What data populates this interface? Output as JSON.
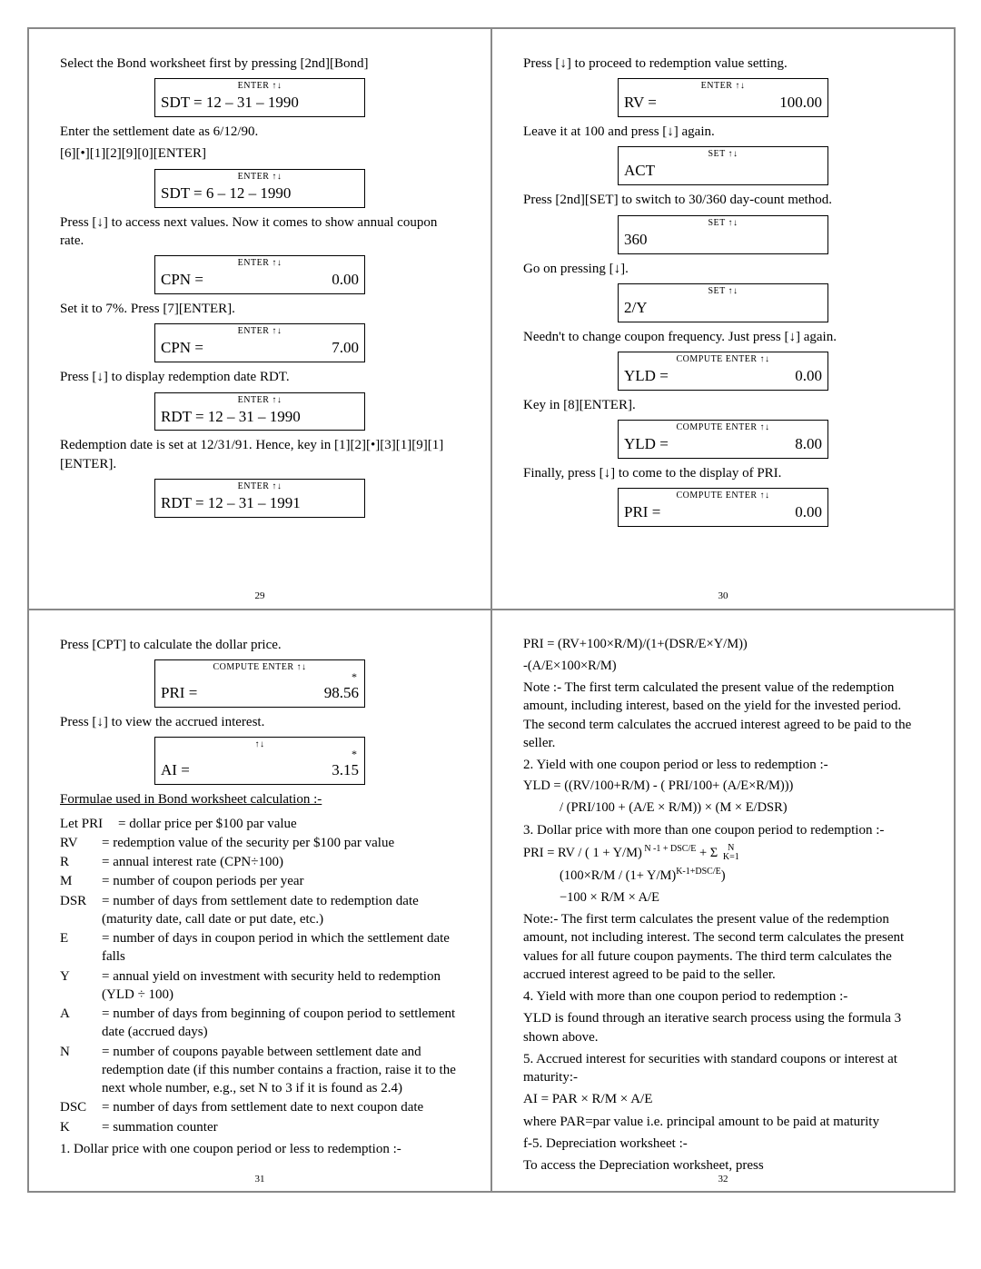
{
  "pages": {
    "p29": {
      "t1": "Select the Bond worksheet first by pressing [2nd][Bond]",
      "s1_hdr": "ENTER  ↑↓",
      "s1_l": "SDT = 12 – 31 – 1990",
      "t2": "Enter the settlement date as 6/12/90.",
      "t3": "[6][•][1][2][9][0][ENTER]",
      "s2_hdr": "ENTER  ↑↓",
      "s2_l": "SDT =   6 – 12 – 1990",
      "t4": "Press [↓] to access next values. Now it comes to show annual coupon rate.",
      "s3_hdr": "ENTER  ↑↓",
      "s3_l": "CPN =",
      "s3_r": "0.00",
      "t5": "Set it to 7%. Press [7][ENTER].",
      "s4_hdr": "ENTER  ↑↓",
      "s4_l": "CPN =",
      "s4_r": "7.00",
      "t6": "Press [↓] to display redemption date RDT.",
      "s5_hdr": "ENTER  ↑↓",
      "s5_l": "RDT = 12 – 31 – 1990",
      "t7": "Redemption date is set at 12/31/91. Hence, key in [1][2][•][3][1][9][1][ENTER].",
      "s6_hdr": "ENTER  ↑↓",
      "s6_l": "RDT =  12 – 31 – 1991",
      "pg": "29"
    },
    "p30": {
      "t1": "Press [↓] to proceed to redemption value setting.",
      "s1_hdr": "ENTER  ↑↓",
      "s1_l": "RV =",
      "s1_r": "100.00",
      "t2": "Leave it at 100 and press [↓] again.",
      "s2_hdr": "SET  ↑↓",
      "s2_l": "ACT",
      "t3": "Press [2nd][SET] to switch to 30/360 day-count method.",
      "s3_hdr": "SET  ↑↓",
      "s3_l": "360",
      "t4": "Go on pressing [↓].",
      "s4_hdr": "SET  ↑↓",
      "s4_l": "2/Y",
      "t5": "Needn't to change coupon frequency. Just press [↓] again.",
      "s5_hdr": "COMPUTE ENTER  ↑↓",
      "s5_l": "YLD =",
      "s5_r": "0.00",
      "t6": "Key in [8][ENTER].",
      "s6_hdr": "COMPUTE ENTER  ↑↓",
      "s6_l": "YLD =",
      "s6_r": "8.00",
      "t7": "Finally, press [↓] to come to the display of PRI.",
      "s7_hdr": "COMPUTE ENTER  ↑↓",
      "s7_l": "PRI =",
      "s7_r": "0.00",
      "pg": "30"
    },
    "p31": {
      "t1": "Press [CPT] to calculate the dollar price.",
      "s1_hdr": "COMPUTE ENTER  ↑↓",
      "s1_star": "*",
      "s1_l": "PRI =",
      "s1_r": "98.56",
      "t2": "Press [↓] to view the accrued interest.",
      "s2_hdr": "↑↓",
      "s2_star": "*",
      "s2_l": "AI   =",
      "s2_r": "3.15",
      "section_title": "Formulae used in Bond worksheet calculation :-",
      "defs": [
        {
          "k": "Let  PRI",
          "v": "= dollar price per $100 par value",
          "kw": "64px"
        },
        {
          "k": "RV",
          "v": "= redemption value of the security per $100 par value"
        },
        {
          "k": "R",
          "v": "= annual interest rate (CPN÷100)"
        },
        {
          "k": "M",
          "v": "= number of coupon periods per year"
        },
        {
          "k": "DSR",
          "v": "= number of days from settlement date to redemption date (maturity date, call date or put date, etc.)"
        },
        {
          "k": "E",
          "v": "= number of days in coupon period in which the settlement date falls"
        },
        {
          "k": "Y",
          "v": "= annual yield on investment with security held to redemption (YLD ÷ 100)"
        },
        {
          "k": "A",
          "v": "= number of days from beginning of coupon period to settlement date (accrued days)"
        },
        {
          "k": "N",
          "v": "= number of coupons payable between settlement date and redemption date (if this number contains a fraction, raise it to the next whole number, e.g., set N to 3 if it is found as 2.4)"
        },
        {
          "k": "DSC",
          "v": "= number of days from settlement date to next coupon date"
        },
        {
          "k": "K",
          "v": "= summation counter"
        }
      ],
      "item1": "1. Dollar price with one coupon period or less to redemption :-",
      "pg": "31"
    },
    "p32": {
      "f1a": "PRI =  (RV+100×R/M)/(1+(DSR/E×Y/M))",
      "f1b": "-(A/E×100×R/M)",
      "note1": "Note :- The first term calculated the present value of the redemption amount, including interest, based on the yield for the invested period. The second term calculates the accrued interest agreed to be paid to the seller.",
      "h2": "2. Yield with one coupon period or less to redemption :-",
      "f2a": "YLD = ((RV/100+R/M) - ( PRI/100+ (A/E×R/M)))",
      "f2b": "/ (PRI/100 + (A/E × R/M)) × (M × E/DSR)",
      "h3": "3. Dollar price with more than one coupon period to redemption :-",
      "f3a": "PRI =  RV / ( 1 + Y/M)",
      "f3a_sup": " N -1 + DSC/E",
      "f3a_tail": " + Σ",
      "f3a_range_top": "N",
      "f3a_range_bot": "K=1",
      "f3b": "(100×R/M / (1+ Y/M)",
      "f3b_sup": "K-1+DSC/E",
      "f3b_tail": ")",
      "f3c": "−100 × R/M × A/E",
      "note3": "Note:- The first term calculates the present value of the redemption amount, not including interest. The second term calculates the present values for all future coupon payments. The third term calculates the accrued interest agreed to be paid to the seller.",
      "h4": "4. Yield with more than one coupon period to redemption :-",
      "f4": "YLD is found through an iterative search process using the formula 3 shown above.",
      "h5": "5. Accrued interest for securities with standard coupons or interest at maturity:-",
      "f5a": "AI = PAR × R/M × A/E",
      "f5b": "where PAR=par value i.e. principal amount to be paid at maturity",
      "h6": "f-5. Depreciation worksheet :-",
      "f6": "To access the Depreciation worksheet, press",
      "pg": "32"
    }
  }
}
